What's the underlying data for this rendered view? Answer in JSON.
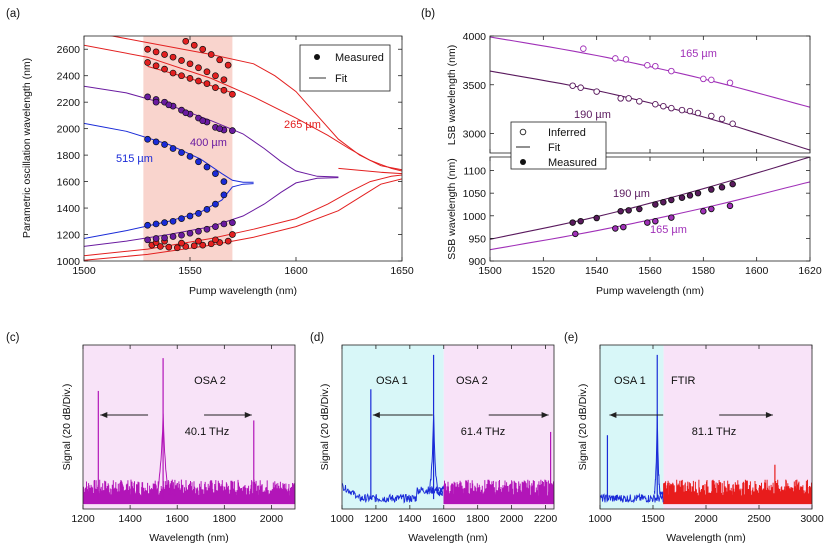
{
  "chart_data": [
    {
      "id": "a",
      "panel_label": "(a)",
      "type": "scatter",
      "xlabel": "Pump wavelength (nm)",
      "ylabel": "Parametric oscillation wavelength (nm)",
      "xlim": [
        1500,
        1650
      ],
      "ylim": [
        1000,
        2700
      ],
      "xticks": [
        1500,
        1550,
        1600,
        1650
      ],
      "yticks": [
        1000,
        1200,
        1400,
        1600,
        1800,
        2000,
        2200,
        2400,
        2600
      ],
      "shaded_region": [
        1528,
        1570
      ],
      "legend": [
        "Measured",
        "Fit"
      ],
      "annotations": [
        "265 µm",
        "400 µm",
        "515 µm"
      ],
      "series": [
        {
          "name": "265 µm",
          "color": "#e32020",
          "measured_lsb": [
            [
              1548,
              2660
            ],
            [
              1552,
              2630
            ],
            [
              1556,
              2600
            ],
            [
              1560,
              2560
            ],
            [
              1564,
              2520
            ],
            [
              1568,
              2480
            ],
            [
              1530,
              2600
            ],
            [
              1534,
              2580
            ],
            [
              1538,
              2560
            ],
            [
              1542,
              2540
            ],
            [
              1546,
              2515
            ],
            [
              1550,
              2490
            ],
            [
              1554,
              2460
            ],
            [
              1558,
              2430
            ],
            [
              1562,
              2400
            ],
            [
              1566,
              2370
            ],
            [
              1530,
              2500
            ],
            [
              1534,
              2475
            ],
            [
              1538,
              2450
            ],
            [
              1542,
              2420
            ],
            [
              1546,
              2400
            ],
            [
              1550,
              2380
            ],
            [
              1554,
              2360
            ],
            [
              1558,
              2340
            ],
            [
              1562,
              2310
            ],
            [
              1566,
              2290
            ],
            [
              1570,
              2260
            ]
          ],
          "measured_ssb": [
            [
              1532,
              1120
            ],
            [
              1536,
              1110
            ],
            [
              1540,
              1105
            ],
            [
              1544,
              1100
            ],
            [
              1548,
              1110
            ],
            [
              1552,
              1115
            ],
            [
              1556,
              1120
            ],
            [
              1560,
              1130
            ],
            [
              1564,
              1140
            ],
            [
              1568,
              1150
            ],
            [
              1534,
              1140
            ],
            [
              1538,
              1150
            ],
            [
              1546,
              1135
            ],
            [
              1554,
              1150
            ],
            [
              1562,
              1160
            ],
            [
              1570,
              1200
            ]
          ]
        },
        {
          "name": "400 µm",
          "color": "#6a1ba0",
          "measured_lsb": [
            [
              1530,
              2240
            ],
            [
              1534,
              2220
            ],
            [
              1538,
              2200
            ],
            [
              1542,
              2170
            ],
            [
              1546,
              2140
            ],
            [
              1550,
              2110
            ],
            [
              1554,
              2080
            ],
            [
              1558,
              2050
            ],
            [
              1562,
              2010
            ],
            [
              1566,
              1990
            ],
            [
              1570,
              1985
            ],
            [
              1534,
              2200
            ],
            [
              1540,
              2180
            ],
            [
              1548,
              2120
            ],
            [
              1556,
              2060
            ],
            [
              1564,
              2000
            ]
          ],
          "measured_ssb": [
            [
              1530,
              1160
            ],
            [
              1534,
              1170
            ],
            [
              1538,
              1175
            ],
            [
              1542,
              1185
            ],
            [
              1546,
              1195
            ],
            [
              1550,
              1210
            ],
            [
              1554,
              1225
            ],
            [
              1558,
              1240
            ],
            [
              1562,
              1260
            ],
            [
              1566,
              1280
            ],
            [
              1570,
              1290
            ]
          ]
        },
        {
          "name": "515 µm",
          "color": "#1a2bd8",
          "measured_lsb": [
            [
              1530,
              1920
            ],
            [
              1534,
              1900
            ],
            [
              1538,
              1880
            ],
            [
              1542,
              1850
            ],
            [
              1546,
              1820
            ],
            [
              1550,
              1790
            ],
            [
              1554,
              1750
            ],
            [
              1558,
              1710
            ],
            [
              1562,
              1660
            ],
            [
              1566,
              1600
            ]
          ],
          "measured_ssb": [
            [
              1530,
              1270
            ],
            [
              1534,
              1280
            ],
            [
              1538,
              1290
            ],
            [
              1542,
              1300
            ],
            [
              1546,
              1320
            ],
            [
              1550,
              1340
            ],
            [
              1554,
              1360
            ],
            [
              1558,
              1390
            ],
            [
              1562,
              1430
            ],
            [
              1566,
              1500
            ]
          ]
        }
      ]
    },
    {
      "id": "b_top",
      "panel_label": "(b)",
      "type": "scatter",
      "ylabel": "LSB wavelength (nm)",
      "xlim": [
        1500,
        1620
      ],
      "ylim": [
        2800,
        4000
      ],
      "yticks": [
        3000,
        3500,
        4000
      ],
      "legend": [
        "Inferred",
        "Fit",
        "Measured"
      ],
      "series": [
        {
          "name": "165 µm",
          "color": "#a030b8",
          "fit": [
            [
              1500,
              3990
            ],
            [
              1540,
              3800
            ],
            [
              1580,
              3560
            ],
            [
              1620,
              3270
            ]
          ],
          "points": [
            [
              1535,
              3870
            ],
            [
              1547,
              3770
            ],
            [
              1551,
              3760
            ],
            [
              1559,
              3700
            ],
            [
              1562,
              3690
            ],
            [
              1568,
              3640
            ],
            [
              1580,
              3560
            ],
            [
              1583,
              3550
            ],
            [
              1590,
              3520
            ]
          ]
        },
        {
          "name": "190 µm",
          "color": "#5a1a5e",
          "fit": [
            [
              1500,
              3640
            ],
            [
              1540,
              3440
            ],
            [
              1580,
              3170
            ],
            [
              1620,
              2830
            ]
          ],
          "points": [
            [
              1531,
              3490
            ],
            [
              1534,
              3470
            ],
            [
              1540,
              3430
            ],
            [
              1549,
              3360
            ],
            [
              1552,
              3360
            ],
            [
              1556,
              3330
            ],
            [
              1562,
              3300
            ],
            [
              1565,
              3280
            ],
            [
              1568,
              3260
            ],
            [
              1572,
              3240
            ],
            [
              1575,
              3230
            ],
            [
              1578,
              3210
            ],
            [
              1583,
              3180
            ],
            [
              1587,
              3150
            ],
            [
              1591,
              3100
            ]
          ]
        }
      ]
    },
    {
      "id": "b_bottom",
      "type": "scatter",
      "xlabel": "Pump wavelength (nm)",
      "ylabel": "SSB wavelength (nm)",
      "xlim": [
        1500,
        1620
      ],
      "ylim": [
        900,
        1130
      ],
      "xticks": [
        1500,
        1520,
        1540,
        1560,
        1580,
        1600,
        1620
      ],
      "yticks": [
        900,
        950,
        1000,
        1050,
        1100
      ],
      "series": [
        {
          "name": "190 µm",
          "color": "#5a1a5e",
          "fit": [
            [
              1500,
              948
            ],
            [
              1540,
              998
            ],
            [
              1580,
              1060
            ],
            [
              1620,
              1130
            ]
          ],
          "points": [
            [
              1531,
              985
            ],
            [
              1534,
              988
            ],
            [
              1540,
              995
            ],
            [
              1549,
              1010
            ],
            [
              1552,
              1012
            ],
            [
              1556,
              1015
            ],
            [
              1562,
              1025
            ],
            [
              1565,
              1030
            ],
            [
              1568,
              1035
            ],
            [
              1572,
              1040
            ],
            [
              1575,
              1045
            ],
            [
              1578,
              1050
            ],
            [
              1583,
              1058
            ],
            [
              1587,
              1063
            ],
            [
              1591,
              1070
            ]
          ]
        },
        {
          "name": "165 µm",
          "color": "#a030b8",
          "fit": [
            [
              1500,
              925
            ],
            [
              1540,
              967
            ],
            [
              1580,
              1017
            ],
            [
              1620,
              1075
            ]
          ],
          "points": [
            [
              1532,
              960
            ],
            [
              1547,
              972
            ],
            [
              1550,
              975
            ],
            [
              1559,
              985
            ],
            [
              1562,
              988
            ],
            [
              1568,
              996
            ],
            [
              1580,
              1010
            ],
            [
              1583,
              1015
            ],
            [
              1590,
              1022
            ]
          ]
        }
      ]
    },
    {
      "id": "c",
      "panel_label": "(c)",
      "type": "line",
      "xlabel": "Wavelength (nm)",
      "ylabel": "Signal (20 dB/Div.)",
      "xlim": [
        1200,
        2100
      ],
      "xticks": [
        1200,
        1400,
        1600,
        1800,
        2000
      ],
      "region_label": "OSA 2",
      "span_label": "40.1 THz",
      "arrow": [
        1265,
        1925
      ],
      "peaks": [
        [
          1265,
          0.72
        ],
        [
          1540,
          0.92
        ],
        [
          1925,
          0.54
        ]
      ]
    },
    {
      "id": "d",
      "panel_label": "(d)",
      "type": "line",
      "xlabel": "Wavelength (nm)",
      "ylabel": "Signal (20 dB/Div.)",
      "xlim": [
        1000,
        2250
      ],
      "xticks": [
        1000,
        1200,
        1400,
        1600,
        1800,
        2000,
        2200
      ],
      "region_labels": [
        "OSA 1",
        "OSA 2"
      ],
      "boundary": 1600,
      "span_label": "61.4 THz",
      "arrow": [
        1170,
        2230
      ],
      "peaks": [
        [
          1170,
          0.73
        ],
        [
          1540,
          0.94
        ],
        [
          2230,
          0.47
        ]
      ]
    },
    {
      "id": "e",
      "panel_label": "(e)",
      "type": "line",
      "xlabel": "Wavelength (nm)",
      "ylabel": "Signal (20 dB/Div.)",
      "xlim": [
        1000,
        3000
      ],
      "xticks": [
        1000,
        1500,
        2000,
        2500,
        3000
      ],
      "region_labels": [
        "OSA 1",
        "FTIR"
      ],
      "boundary": 1600,
      "span_label": "81.1 THz",
      "arrow": [
        1070,
        2650
      ],
      "peaks": [
        [
          1070,
          0.45
        ],
        [
          1540,
          0.94
        ],
        [
          2650,
          0.27
        ]
      ]
    }
  ]
}
